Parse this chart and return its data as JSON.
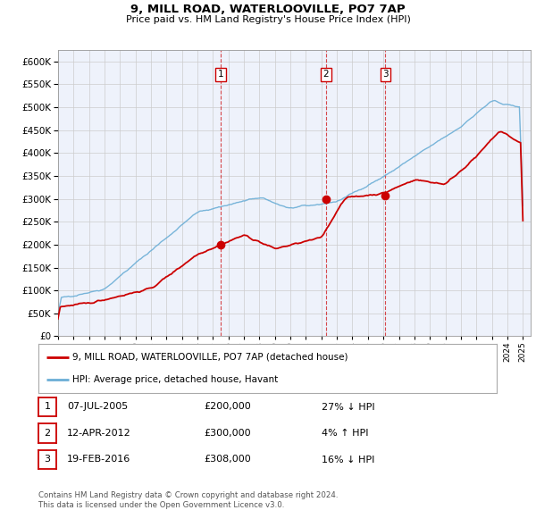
{
  "title": "9, MILL ROAD, WATERLOOVILLE, PO7 7AP",
  "subtitle": "Price paid vs. HM Land Registry's House Price Index (HPI)",
  "legend_entry1": "9, MILL ROAD, WATERLOOVILLE, PO7 7AP (detached house)",
  "legend_entry2": "HPI: Average price, detached house, Havant",
  "transactions": [
    {
      "label": "1",
      "date_x": 2005.52,
      "price": 200000
    },
    {
      "label": "2",
      "date_x": 2012.28,
      "price": 300000
    },
    {
      "label": "3",
      "date_x": 2016.13,
      "price": 308000
    }
  ],
  "table_rows": [
    [
      "1",
      "07-JUL-2005",
      "£200,000",
      "27% ↓ HPI"
    ],
    [
      "2",
      "12-APR-2012",
      "£300,000",
      "4% ↑ HPI"
    ],
    [
      "3",
      "19-FEB-2016",
      "£308,000",
      "16% ↓ HPI"
    ]
  ],
  "footer1": "Contains HM Land Registry data © Crown copyright and database right 2024.",
  "footer2": "This data is licensed under the Open Government Licence v3.0.",
  "hpi_color": "#6baed6",
  "price_color": "#cc0000",
  "vline_color": "#cc0000",
  "grid_color": "#cccccc",
  "chart_bg_color": "#eef2fb",
  "ylim_max": 625000,
  "ylim_min": 0,
  "xlim_min": 1995,
  "xlim_max": 2025.5
}
